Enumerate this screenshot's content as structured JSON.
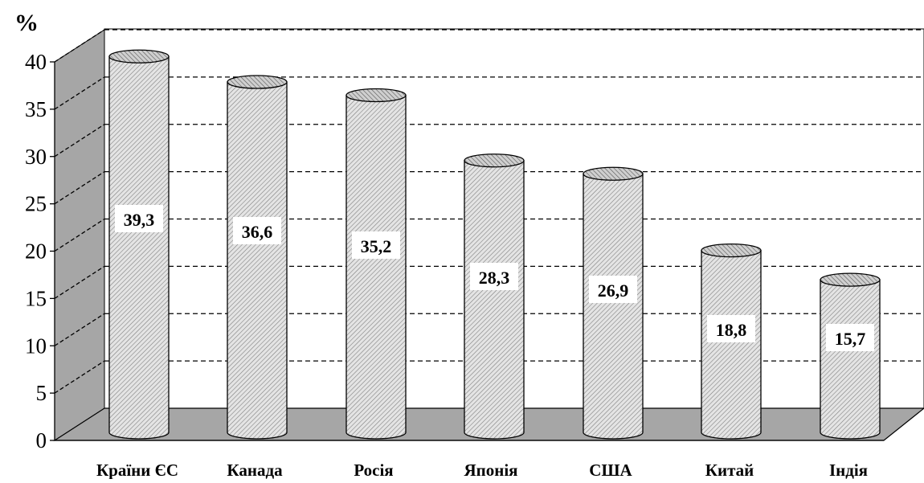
{
  "chart_data": {
    "type": "bar",
    "bar_shape": "3d-cylinder",
    "unit_label": "%",
    "categories": [
      "Країни ЄС",
      "Канада",
      "Росія",
      "Японія",
      "США",
      "Китай",
      "Індія"
    ],
    "values": [
      39.3,
      36.6,
      35.2,
      28.3,
      26.9,
      18.8,
      15.7
    ],
    "data_labels": [
      "39,3",
      "36,6",
      "35,2",
      "28,3",
      "26,9",
      "18,8",
      "15,7"
    ],
    "y_ticks": [
      0,
      5,
      10,
      15,
      20,
      25,
      30,
      35,
      40
    ],
    "ylim": [
      0,
      40
    ],
    "grid": true,
    "grid_style": "dashed",
    "legend": false,
    "colors": {
      "bar": "#d6d6d6",
      "floor": "#a6a6a6",
      "wall": "#ffffff",
      "side_wall": "#a6a6a6"
    }
  }
}
